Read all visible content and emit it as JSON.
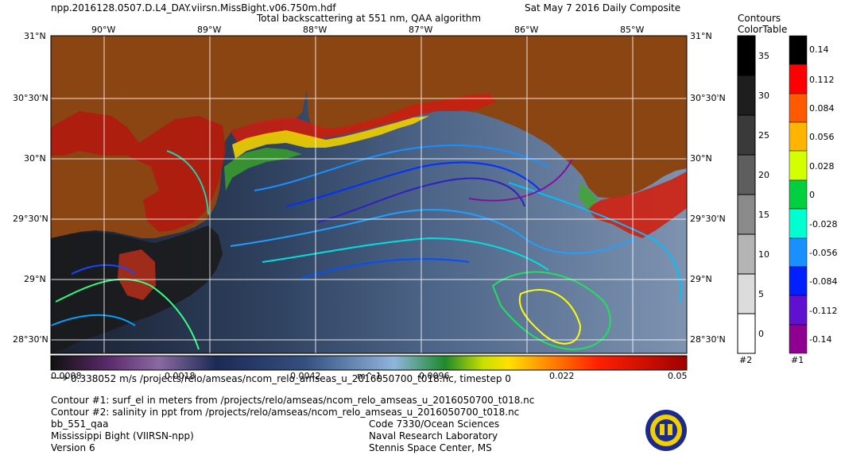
{
  "header": {
    "filename": "npp.2016128.0507.D.L4_DAY.viirsn.MissBight.v06.750m.hdf",
    "subtitle": "Total backscattering at 551 nm, QAA algorithm",
    "date": "Sat May  7 2016 Daily Composite"
  },
  "axes": {
    "top_lon": [
      "90°W",
      "89°W",
      "88°W",
      "87°W",
      "86°W",
      "85°W"
    ],
    "left_lat": [
      "31°N",
      "30°30'N",
      "30°N",
      "29°30'N",
      "29°N",
      "28°30'N"
    ],
    "right_lat": [
      "31°N",
      "30°30'N",
      "30°N",
      "29°30'N",
      "29°N",
      "28°30'N"
    ]
  },
  "colorbar": {
    "ticks": [
      "0.0008",
      "0.0018",
      "0.0042",
      "m^-1",
      "0.0096",
      "0.022",
      "0.05"
    ]
  },
  "contour_legend_title": "Contours\nColorTable",
  "legend2": {
    "labels": [
      "35",
      "30",
      "25",
      "20",
      "15",
      "10",
      "5",
      "0"
    ],
    "id": "#2"
  },
  "legend1": {
    "labels": [
      "0.14",
      "0.112",
      "0.084",
      "0.056",
      "0.028",
      "0",
      "-0.028",
      "-0.056",
      "-0.084",
      "-0.112",
      "-0.14"
    ],
    "id": "#1"
  },
  "footer": {
    "vector_line": "0.338052 m/s /projects/relo/amseas/ncom_relo_amseas_u_2016050700_t018.nc, timestep 0",
    "contour1": "Contour #1: surf_el in meters from /projects/relo/amseas/ncom_relo_amseas_u_2016050700_t018.nc",
    "contour2": "Contour #2: salinity in ppt from /projects/relo/amseas/ncom_relo_amseas_u_2016050700_t018.nc",
    "product": "bb_551_qaa",
    "region": "Mississippi Bight (VIIRSN-npp)",
    "version": "Version 6",
    "org1": "Code 7330/Ocean Sciences",
    "org2": "Naval Research Laboratory",
    "org3": "Stennis Space Center, MS"
  },
  "colors": {
    "land": "#8a4a12",
    "ocean": "#5a7090",
    "deep": "#2a3d5a"
  }
}
